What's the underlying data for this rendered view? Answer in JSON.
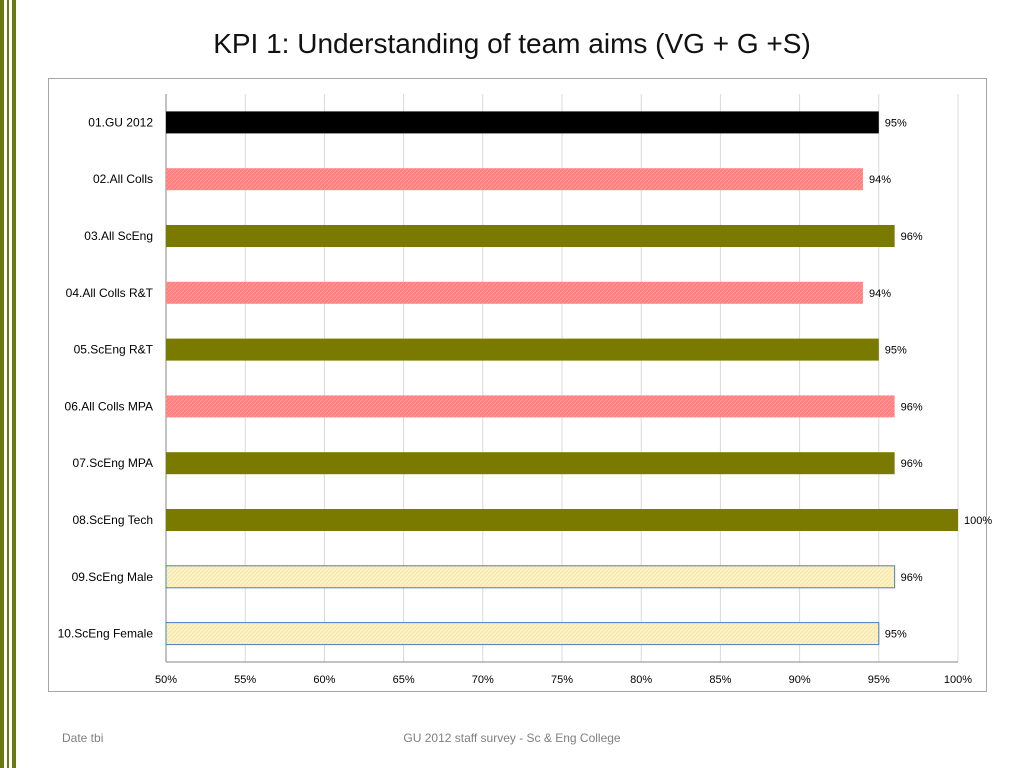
{
  "slide": {
    "title": "KPI 1: Understanding of team aims (VG + G +S)",
    "footer_left": "Date tbi",
    "footer_center": "GU 2012 staff survey -  Sc & Eng College"
  },
  "colors": {
    "accent_stripe": "#6b7a12",
    "bar_black": "#000000",
    "bar_pink": "#ff8080",
    "bar_olive": "#7a7a00",
    "bar_cream": "#fdf2c4",
    "bar_cream_border": "#4a7ebb",
    "grid": "#d9d9d9"
  },
  "chart_data": {
    "type": "bar",
    "orientation": "horizontal",
    "xlim": [
      50,
      100
    ],
    "x_ticks": [
      "50%",
      "55%",
      "60%",
      "65%",
      "70%",
      "75%",
      "80%",
      "85%",
      "90%",
      "95%",
      "100%"
    ],
    "grid": true,
    "categories": [
      "01.GU 2012",
      "02.All Colls",
      "03.All ScEng",
      "04.All Colls R&T",
      "05.ScEng R&T",
      "06.All Colls MPA",
      "07.ScEng MPA",
      "08.ScEng Tech",
      "09.ScEng Male",
      "10.ScEng Female"
    ],
    "values": [
      95,
      94,
      96,
      94,
      95,
      96,
      96,
      100,
      96,
      95
    ],
    "data_labels": [
      "95%",
      "94%",
      "96%",
      "94%",
      "95%",
      "96%",
      "96%",
      "100%",
      "96%",
      "95%"
    ],
    "bar_styles": [
      "black",
      "pink",
      "olive",
      "pink",
      "olive",
      "pink",
      "olive",
      "olive",
      "cream",
      "cream"
    ]
  }
}
